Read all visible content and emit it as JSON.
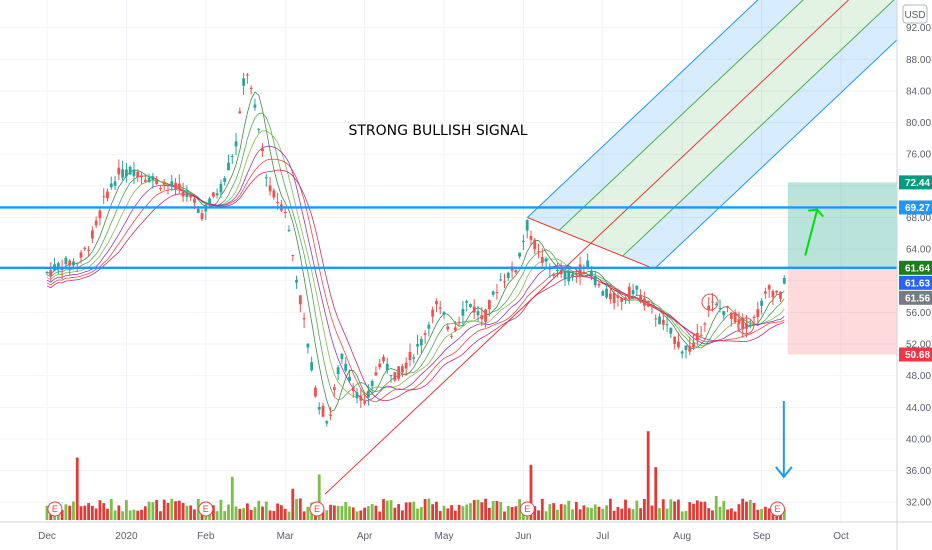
{
  "chart_data": {
    "type": "candlestick",
    "currency": "USD",
    "y_axis": {
      "range": [
        29.5,
        95.5
      ],
      "ticks": [
        "32.00",
        "36.00",
        "40.00",
        "44.00",
        "48.00",
        "52.00",
        "56.00",
        "60.00",
        "64.00",
        "68.00",
        "72.00",
        "76.00",
        "80.00",
        "84.00",
        "88.00",
        "92.00"
      ]
    },
    "x_axis": {
      "ticks": [
        {
          "label": "Dec",
          "month": 0
        },
        {
          "label": "2020",
          "month": 1
        },
        {
          "label": "Feb",
          "month": 2
        },
        {
          "label": "Mar",
          "month": 3
        },
        {
          "label": "Apr",
          "month": 4
        },
        {
          "label": "May",
          "month": 5
        },
        {
          "label": "Jun",
          "month": 6
        },
        {
          "label": "Jul",
          "month": 7
        },
        {
          "label": "Aug",
          "month": 8
        },
        {
          "label": "Sep",
          "month": 9
        },
        {
          "label": "Oct",
          "month": 10
        }
      ]
    },
    "price_path": [
      {
        "m": 0.0,
        "p": 61.0
      },
      {
        "m": 0.15,
        "p": 62.0
      },
      {
        "m": 0.4,
        "p": 62.5
      },
      {
        "m": 0.55,
        "p": 65.0
      },
      {
        "m": 0.75,
        "p": 71.0
      },
      {
        "m": 0.9,
        "p": 73.5
      },
      {
        "m": 1.1,
        "p": 74.0
      },
      {
        "m": 1.4,
        "p": 72.5
      },
      {
        "m": 1.7,
        "p": 71.5
      },
      {
        "m": 1.95,
        "p": 68.5
      },
      {
        "m": 2.2,
        "p": 72.0
      },
      {
        "m": 2.4,
        "p": 78.0
      },
      {
        "m": 2.5,
        "p": 87.5
      },
      {
        "m": 2.65,
        "p": 80.0
      },
      {
        "m": 2.8,
        "p": 71.5
      },
      {
        "m": 3.0,
        "p": 69.0
      },
      {
        "m": 3.2,
        "p": 57.0
      },
      {
        "m": 3.4,
        "p": 45.0
      },
      {
        "m": 3.55,
        "p": 42.0
      },
      {
        "m": 3.7,
        "p": 50.5
      },
      {
        "m": 3.85,
        "p": 47.0
      },
      {
        "m": 4.0,
        "p": 44.0
      },
      {
        "m": 4.2,
        "p": 50.0
      },
      {
        "m": 4.4,
        "p": 48.0
      },
      {
        "m": 4.7,
        "p": 52.0
      },
      {
        "m": 4.9,
        "p": 57.0
      },
      {
        "m": 5.1,
        "p": 53.5
      },
      {
        "m": 5.3,
        "p": 57.5
      },
      {
        "m": 5.5,
        "p": 55.0
      },
      {
        "m": 5.7,
        "p": 60.0
      },
      {
        "m": 5.9,
        "p": 61.5
      },
      {
        "m": 6.05,
        "p": 67.0
      },
      {
        "m": 6.2,
        "p": 63.0
      },
      {
        "m": 6.4,
        "p": 61.0
      },
      {
        "m": 6.6,
        "p": 60.5
      },
      {
        "m": 6.8,
        "p": 62.0
      },
      {
        "m": 7.0,
        "p": 58.5
      },
      {
        "m": 7.2,
        "p": 57.5
      },
      {
        "m": 7.4,
        "p": 59.0
      },
      {
        "m": 7.6,
        "p": 56.5
      },
      {
        "m": 7.8,
        "p": 54.0
      },
      {
        "m": 8.0,
        "p": 51.5
      },
      {
        "m": 8.15,
        "p": 51.5
      },
      {
        "m": 8.35,
        "p": 57.0
      },
      {
        "m": 8.6,
        "p": 56.0
      },
      {
        "m": 8.75,
        "p": 54.5
      },
      {
        "m": 8.9,
        "p": 55.0
      },
      {
        "m": 9.1,
        "p": 59.0
      },
      {
        "m": 9.25,
        "p": 58.0
      },
      {
        "m": 9.33,
        "p": 61.6
      }
    ],
    "volume_spikes": [
      {
        "m": 0.4,
        "v": 2.6
      },
      {
        "m": 2.35,
        "v": 1.8
      },
      {
        "m": 3.1,
        "v": 1.3
      },
      {
        "m": 3.45,
        "v": 1.9
      },
      {
        "m": 6.1,
        "v": 2.3
      },
      {
        "m": 7.55,
        "v": 3.7
      },
      {
        "m": 7.65,
        "v": 2.2
      },
      {
        "m": 8.45,
        "v": 1.0
      }
    ],
    "horizontal_levels": [
      69.27,
      61.64
    ],
    "price_tags": [
      {
        "value": "72.44",
        "price": 72.44,
        "color": "#089981"
      },
      {
        "value": "69.27",
        "price": 69.27,
        "color": "#2196f3"
      },
      {
        "value": "61.64",
        "price": 61.64,
        "color": "#1e7c1e"
      },
      {
        "value": "61.63",
        "price": 61.63,
        "color": "#2962ff"
      },
      {
        "value": "61.56",
        "price": 61.56,
        "color": "#787b86"
      },
      {
        "value": "50.68",
        "price": 50.68,
        "color": "#f23645"
      }
    ],
    "position_tool": {
      "entry": 61.6,
      "target": 72.44,
      "stop": 50.68,
      "m_start": 9.33,
      "m_end": 10.7
    },
    "pitchfork": {
      "pivot_a": {
        "m": 3.5,
        "p": 33.0
      },
      "pivot_b": {
        "m": 6.05,
        "p": 68.0
      },
      "pivot_c": {
        "m": 7.65,
        "p": 61.5
      }
    },
    "earnings_marker": "E",
    "earnings_months": [
      0.1,
      2.0,
      3.4,
      6.05,
      9.2
    ],
    "annotation": "STRONG BULLISH SIGNAL"
  },
  "colors": {
    "up": "#26a69a",
    "down": "#ef5350",
    "volume_up": "#7cbf48",
    "volume_down": "#e53935",
    "level_line": "#2196f3",
    "median_line": "#e53935",
    "arrow_green": "#00e000",
    "arrow_blue": "#2196f3"
  }
}
